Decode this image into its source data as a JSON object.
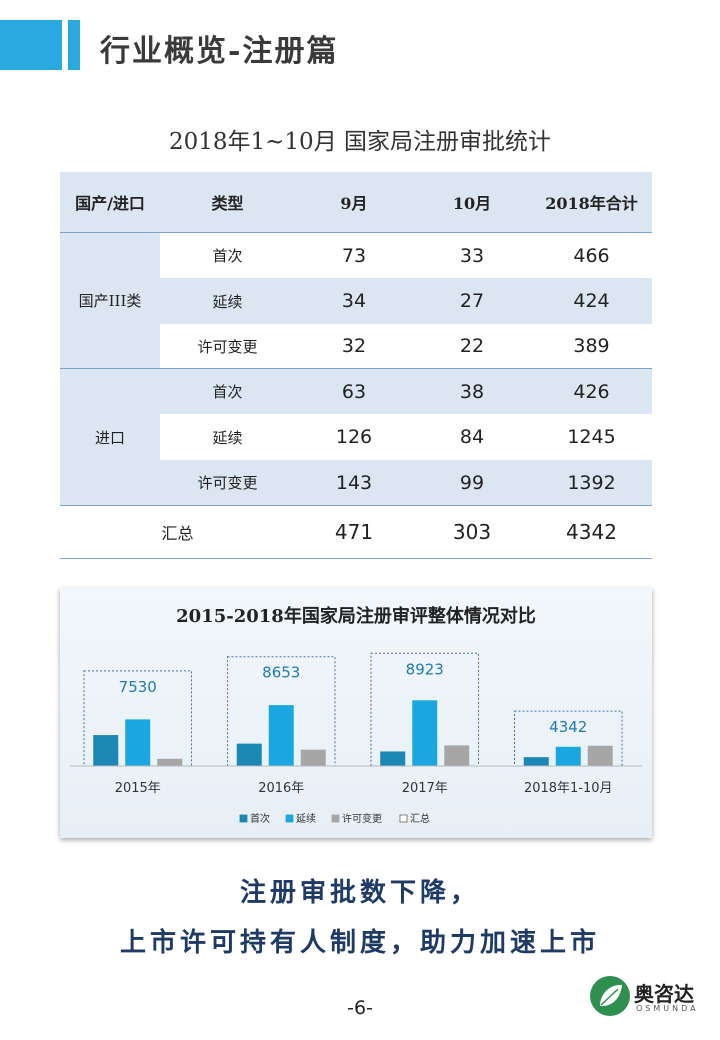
{
  "header": {
    "title": "行业概览-注册篇"
  },
  "table": {
    "title": "2018年1~10月 国家局注册审批统计",
    "columns": [
      "国产/进口",
      "类型",
      "9月",
      "10月",
      "2018年合计"
    ],
    "groups": [
      {
        "name": "国产III类",
        "rows": [
          {
            "type": "首次",
            "sep": "73",
            "oct": "33",
            "total": "466"
          },
          {
            "type": "延续",
            "sep": "34",
            "oct": "27",
            "total": "424"
          },
          {
            "type": "许可变更",
            "sep": "32",
            "oct": "22",
            "total": "389"
          }
        ]
      },
      {
        "name": "进口",
        "rows": [
          {
            "type": "首次",
            "sep": "63",
            "oct": "38",
            "total": "426"
          },
          {
            "type": "延续",
            "sep": "126",
            "oct": "84",
            "total": "1245"
          },
          {
            "type": "许可变更",
            "sep": "143",
            "oct": "99",
            "total": "1392"
          }
        ]
      }
    ],
    "summary": {
      "label": "汇总",
      "sep": "471",
      "oct": "303",
      "total": "4342"
    }
  },
  "chart_data": {
    "type": "bar",
    "title": "2015-2018年国家局注册审评整体情况对比",
    "categories": [
      "2015年",
      "2016年",
      "2017年",
      "2018年1-10月"
    ],
    "series": [
      {
        "name": "首次",
        "color": "#1b87b5",
        "values": [
          2450,
          1770,
          1150,
          700
        ]
      },
      {
        "name": "延续",
        "color": "#1aa7e0",
        "values": [
          3690,
          4820,
          5200,
          1520
        ]
      },
      {
        "name": "许可变更",
        "color": "#a6a6a6",
        "values": [
          570,
          1290,
          1630,
          1600
        ]
      },
      {
        "name": "汇总",
        "color": "#ffffff",
        "values": [
          7530,
          8653,
          8923,
          4342
        ]
      }
    ],
    "data_labels": [
      "7530",
      "8653",
      "8923",
      "4342"
    ],
    "ylim": [
      0,
      9500
    ],
    "legend": "bottom"
  },
  "slogan": {
    "line1": "注册审批数下降，",
    "line2": "上市许可持有人制度，助力加速上市"
  },
  "page_number": "-6-",
  "logo": {
    "name": "奥咨达",
    "sub": "OSMUNDA"
  }
}
